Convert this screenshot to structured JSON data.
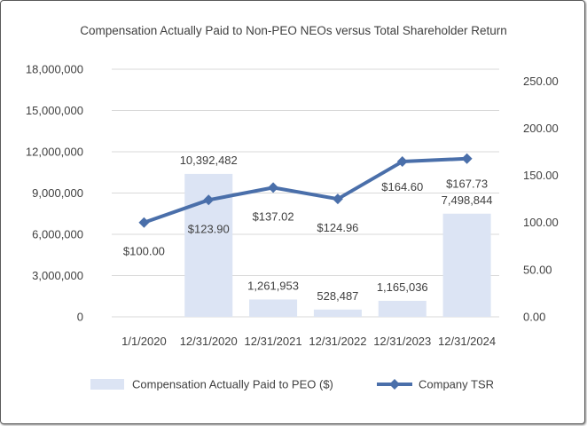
{
  "chart_data": {
    "type": "bar",
    "title": "Compensation Actually Paid to Non-PEO NEOs versus Total Shareholder Return",
    "categories": [
      "1/1/2020",
      "12/31/2020",
      "12/31/2021",
      "12/31/2022",
      "12/31/2023",
      "12/31/2024"
    ],
    "series": [
      {
        "name": "Compensation Actually Paid to PEO ($)",
        "kind": "bar",
        "axis": "left",
        "values": [
          0,
          10392482,
          1261953,
          528487,
          1165036,
          7498844
        ],
        "labels": [
          "",
          "10,392,482",
          "1,261,953",
          "528,487",
          "1,165,036",
          "7,498,844"
        ],
        "color": "#dce4f4"
      },
      {
        "name": "Company TSR",
        "kind": "line",
        "axis": "right",
        "values": [
          100.0,
          123.9,
          137.02,
          124.96,
          164.6,
          167.73
        ],
        "labels": [
          "$100.00",
          "$123.90",
          "$137.02",
          "$124.96",
          "$164.60",
          "$167.73"
        ],
        "color": "#4a6faa"
      }
    ],
    "y_left": {
      "min": 0,
      "max": 18000000,
      "ticks": [
        "0",
        "3,000,000",
        "6,000,000",
        "9,000,000",
        "12,000,000",
        "15,000,000",
        "18,000,000"
      ]
    },
    "y_right": {
      "min": 0,
      "max": 262.5,
      "ticks": [
        "0.00",
        "50.00",
        "100.00",
        "150.00",
        "200.00",
        "250.00"
      ]
    },
    "legend_position": "bottom",
    "grid": true
  }
}
